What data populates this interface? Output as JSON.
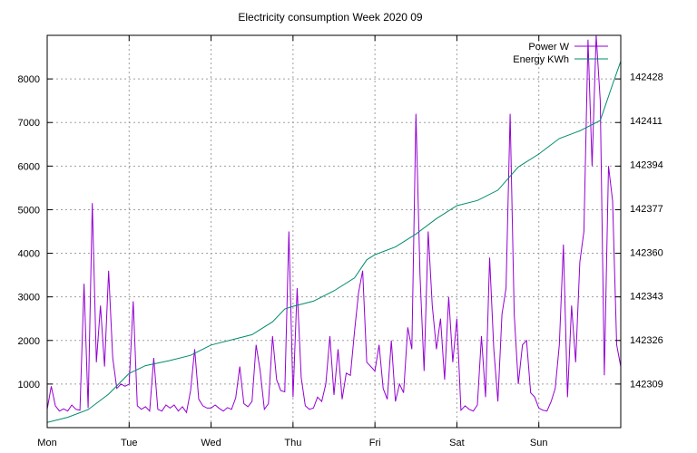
{
  "chart_data": {
    "type": "line",
    "title": "Electricity consumption Week 2020 09",
    "xlabel": "",
    "ylabel": "",
    "categories": [
      "Mon",
      "Tue",
      "Wed",
      "Thu",
      "Fri",
      "Sat",
      "Sun"
    ],
    "x_range_days": [
      0,
      7
    ],
    "ylim": [
      0,
      9000
    ],
    "y2lim": [
      142292,
      142444
    ],
    "yticks": [
      1000,
      2000,
      3000,
      4000,
      5000,
      6000,
      7000,
      8000
    ],
    "y2ticks": [
      142309,
      142326,
      142343,
      142360,
      142377,
      142394,
      142411,
      142428
    ],
    "grid": true,
    "legend_position": "top-right",
    "series": [
      {
        "name": "Power W",
        "axis": "left",
        "color": "#9400d3",
        "x": [
          0.0,
          0.05,
          0.1,
          0.15,
          0.2,
          0.25,
          0.3,
          0.35,
          0.4,
          0.45,
          0.5,
          0.55,
          0.6,
          0.65,
          0.7,
          0.75,
          0.8,
          0.85,
          0.9,
          0.95,
          1.0,
          1.05,
          1.1,
          1.15,
          1.2,
          1.25,
          1.3,
          1.35,
          1.4,
          1.45,
          1.5,
          1.55,
          1.6,
          1.65,
          1.7,
          1.75,
          1.8,
          1.85,
          1.9,
          1.95,
          2.0,
          2.05,
          2.1,
          2.15,
          2.2,
          2.25,
          2.3,
          2.35,
          2.4,
          2.45,
          2.5,
          2.55,
          2.6,
          2.65,
          2.7,
          2.75,
          2.8,
          2.85,
          2.9,
          2.95,
          3.0,
          3.05,
          3.1,
          3.15,
          3.2,
          3.25,
          3.3,
          3.35,
          3.4,
          3.45,
          3.5,
          3.55,
          3.6,
          3.65,
          3.7,
          3.75,
          3.8,
          3.85,
          3.9,
          3.95,
          4.0,
          4.05,
          4.1,
          4.15,
          4.2,
          4.25,
          4.3,
          4.35,
          4.4,
          4.45,
          4.5,
          4.55,
          4.6,
          4.65,
          4.7,
          4.75,
          4.8,
          4.85,
          4.9,
          4.95,
          5.0,
          5.05,
          5.1,
          5.15,
          5.2,
          5.25,
          5.3,
          5.35,
          5.4,
          5.45,
          5.5,
          5.55,
          5.6,
          5.65,
          5.7,
          5.75,
          5.8,
          5.85,
          5.9,
          5.95,
          6.0,
          6.05,
          6.1,
          6.15,
          6.2,
          6.25,
          6.3,
          6.35,
          6.4,
          6.45,
          6.5,
          6.55,
          6.6,
          6.65,
          6.7,
          6.75,
          6.8,
          6.85,
          6.9,
          6.95,
          7.0
        ],
        "values": [
          420,
          950,
          500,
          380,
          430,
          380,
          520,
          420,
          400,
          3300,
          450,
          5150,
          1500,
          2800,
          1400,
          3600,
          1600,
          900,
          1000,
          950,
          1000,
          2900,
          500,
          420,
          480,
          380,
          1600,
          420,
          380,
          520,
          450,
          520,
          380,
          480,
          350,
          850,
          1800,
          650,
          500,
          450,
          450,
          520,
          440,
          380,
          460,
          420,
          680,
          1400,
          550,
          480,
          600,
          1900,
          1300,
          420,
          550,
          2100,
          1100,
          850,
          820,
          4500,
          700,
          3200,
          1150,
          500,
          420,
          450,
          700,
          600,
          1000,
          2100,
          750,
          1800,
          650,
          1250,
          1200,
          2200,
          3100,
          3600,
          1500,
          1400,
          1300,
          1900,
          900,
          650,
          2000,
          600,
          1000,
          800,
          2300,
          1800,
          7200,
          3500,
          1300,
          4500,
          2800,
          1800,
          2500,
          1100,
          3000,
          1500,
          2500,
          400,
          500,
          420,
          380,
          520,
          2100,
          700,
          3900,
          1800,
          600,
          2600,
          3200,
          7200,
          2600,
          1000,
          1900,
          2000,
          800,
          700,
          450,
          400,
          380,
          600,
          900,
          1900,
          4200,
          700,
          2800,
          1500,
          3800,
          4500,
          8900,
          6000,
          9000,
          7500,
          1200,
          6000,
          5200,
          1900,
          1400
        ]
      },
      {
        "name": "Energy KWh",
        "axis": "right",
        "color": "#008b6b",
        "x": [
          0.0,
          0.25,
          0.5,
          0.75,
          1.0,
          1.2,
          1.5,
          1.75,
          2.0,
          2.25,
          2.5,
          2.75,
          2.9,
          3.0,
          3.25,
          3.5,
          3.75,
          3.9,
          4.0,
          4.25,
          4.5,
          4.75,
          5.0,
          5.25,
          5.5,
          5.75,
          6.0,
          6.25,
          6.5,
          6.75,
          6.9,
          7.0
        ],
        "values": [
          142294,
          142296,
          142299,
          142305,
          142313,
          142316,
          142318,
          142320,
          142324,
          142326,
          142328,
          142333,
          142338,
          142339,
          142341,
          142345,
          142350,
          142357,
          142359,
          142362,
          142367,
          142373,
          142378,
          142380,
          142384,
          142393,
          142398,
          142404,
          142407,
          142411,
          142425,
          142434
        ]
      }
    ]
  }
}
